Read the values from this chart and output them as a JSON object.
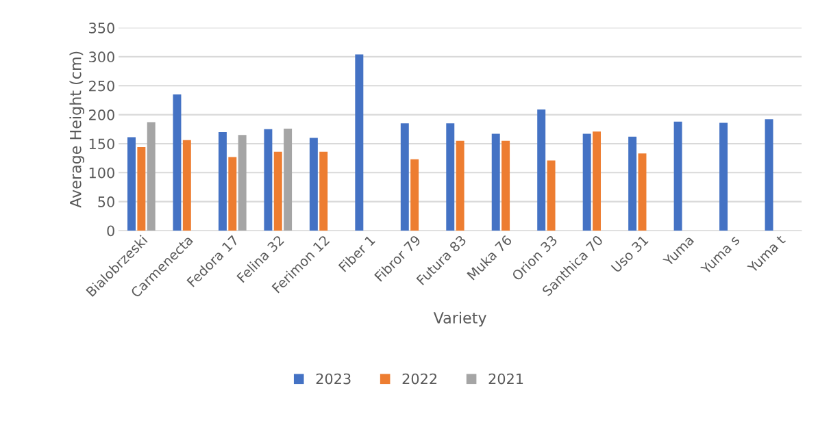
{
  "chart_data": {
    "type": "bar",
    "xlabel": "Variety",
    "ylabel": "Average Height (cm)",
    "categories": [
      "Bialobrzeski",
      "Carmenecta",
      "Fedora 17",
      "Felina 32",
      "Ferimon 12",
      "Fiber 1",
      "Fibror 79",
      "Futura 83",
      "Muka 76",
      "Orion 33",
      "Santhica 70",
      "Uso 31",
      "Yuma",
      "Yuma s",
      "Yuma t"
    ],
    "series": [
      {
        "name": "2023",
        "color": "#4472c4",
        "values": [
          161,
          235,
          170,
          175,
          160,
          304,
          185,
          185,
          167,
          209,
          167,
          162,
          188,
          186,
          192
        ]
      },
      {
        "name": "2022",
        "color": "#ed7d31",
        "values": [
          144,
          156,
          127,
          136,
          136,
          null,
          123,
          155,
          155,
          121,
          171,
          133,
          null,
          null,
          null
        ]
      },
      {
        "name": "2021",
        "color": "#a5a5a5",
        "values": [
          187,
          null,
          165,
          176,
          null,
          null,
          null,
          null,
          null,
          null,
          null,
          null,
          null,
          null,
          null
        ]
      }
    ],
    "ylim": [
      0,
      350
    ],
    "yticks": [
      0,
      50,
      100,
      150,
      200,
      250,
      300,
      350
    ],
    "grid": "y",
    "legend": "bottom"
  }
}
